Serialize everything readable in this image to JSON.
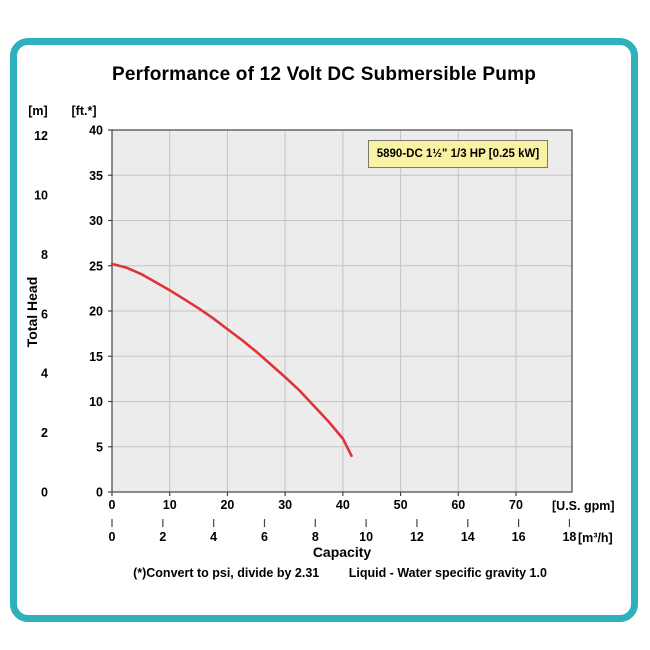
{
  "page": {
    "footnote_left": "(*)Convert to psi, divide by 2.31",
    "footnote_right": "Liquid - Water specific gravity 1.0"
  },
  "chart_data": {
    "type": "line",
    "title": "Performance of 12 Volt DC Submersible Pump",
    "legend_label": "5890-DC 1½\" 1/3 HP [0.25 kW]",
    "legend_position": "top-right-inside",
    "xlabel": "Capacity",
    "ylabel": "Total Head",
    "grid": "on",
    "x_primary": {
      "unit": "[U.S. gpm]",
      "ticks": [
        0,
        10,
        20,
        30,
        40,
        50,
        60,
        70
      ],
      "axis_max_gpm": 79.7
    },
    "x_secondary": {
      "unit": "[m³/h]",
      "ticks": [
        0,
        2,
        4,
        6,
        8,
        10,
        12,
        14,
        16,
        18
      ],
      "gpm_per_m3h": 4.403
    },
    "y_primary": {
      "unit": "[ft.*]",
      "ticks": [
        0,
        5,
        10,
        15,
        20,
        25,
        30,
        35,
        40
      ],
      "max_ft": 40
    },
    "y_secondary": {
      "unit": "[m]",
      "ticks": [
        0,
        2,
        4,
        6,
        8,
        10,
        12
      ],
      "ft_per_m": 3.281
    },
    "series": [
      {
        "name": "5890-DC",
        "color": "#df3338",
        "points_gpm_ft": [
          [
            0,
            25.2
          ],
          [
            2.5,
            24.8
          ],
          [
            5,
            24.1
          ],
          [
            7.5,
            23.2
          ],
          [
            10,
            22.3
          ],
          [
            12.5,
            21.3
          ],
          [
            15,
            20.3
          ],
          [
            17.5,
            19.2
          ],
          [
            20,
            18.0
          ],
          [
            22.5,
            16.8
          ],
          [
            25,
            15.5
          ],
          [
            27.5,
            14.1
          ],
          [
            30,
            12.7
          ],
          [
            32.5,
            11.2
          ],
          [
            35,
            9.5
          ],
          [
            37.5,
            7.8
          ],
          [
            40,
            5.9
          ],
          [
            41.5,
            4.0
          ]
        ]
      }
    ]
  },
  "colors": {
    "frame": "#2fb0bd",
    "plot_bg": "#ececec",
    "grid": "#c4c4c4",
    "axis": "#444444",
    "curve": "#df3338",
    "legend_bg": "#f9f2a2",
    "legend_border": "#777777",
    "text": "#000000"
  }
}
